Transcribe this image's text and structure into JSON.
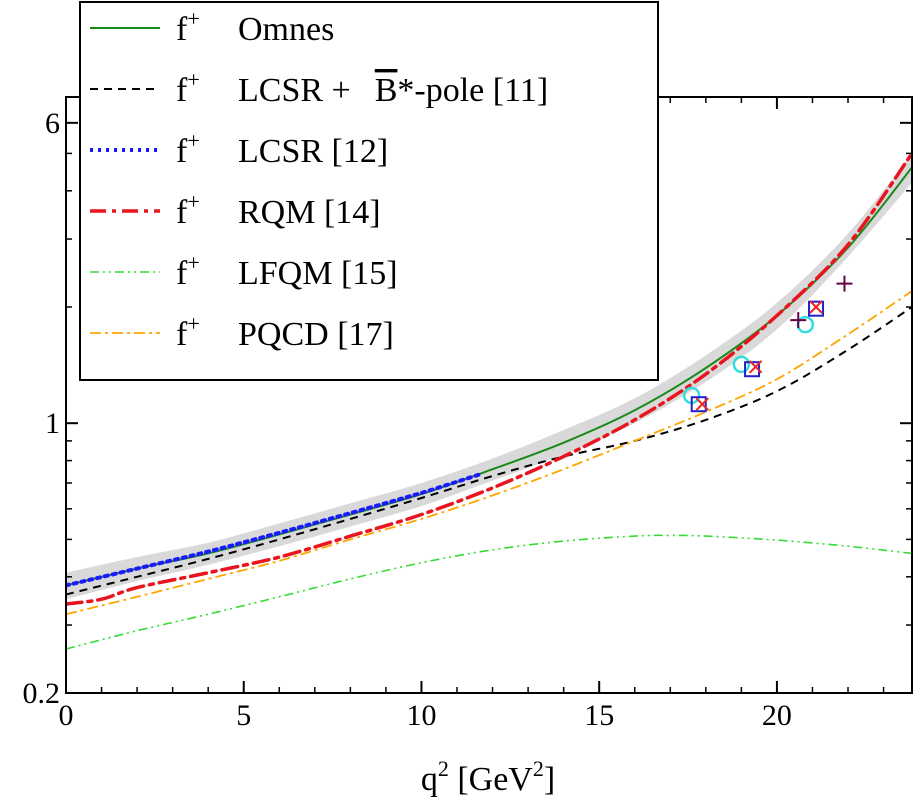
{
  "chart_data": {
    "type": "line",
    "title": "",
    "xlabel": "q",
    "xlabel_sup": "2",
    "xlabel_unit_open": " [GeV",
    "xlabel_unit_sup": "2",
    "xlabel_unit_close": "]",
    "ylabel": "",
    "xlim": [
      0,
      23.8
    ],
    "ylim": [
      0.2,
      7.0
    ],
    "yscale": "log",
    "grid": false,
    "legend_position": "top-left",
    "x_ticks": [
      {
        "value": 0,
        "label": "0"
      },
      {
        "value": 5,
        "label": "5"
      },
      {
        "value": 10,
        "label": "10"
      },
      {
        "value": 15,
        "label": "15"
      },
      {
        "value": 20,
        "label": "20"
      }
    ],
    "y_ticks": [
      {
        "value": 0.2,
        "label": "0.2"
      },
      {
        "value": 1,
        "label": "1"
      },
      {
        "value": 6,
        "label": "6"
      }
    ],
    "band": {
      "name": "Omnes uncertainty",
      "color": "#d9d9d9",
      "x": [
        0,
        2,
        4,
        6,
        8,
        10,
        12,
        14,
        16,
        18,
        20,
        22,
        23.8
      ],
      "lower": [
        0.35,
        0.39,
        0.43,
        0.48,
        0.54,
        0.61,
        0.71,
        0.83,
        1.0,
        1.28,
        1.75,
        2.7,
        4.2
      ],
      "upper": [
        0.41,
        0.45,
        0.49,
        0.55,
        0.62,
        0.7,
        0.81,
        0.96,
        1.16,
        1.5,
        2.05,
        3.1,
        5.0
      ]
    },
    "series": [
      {
        "name": "Omnes",
        "color": "#1a8a1a",
        "dash": "",
        "width": 2,
        "x": [
          0,
          2,
          4,
          6,
          8,
          10,
          12,
          14,
          16,
          18,
          20,
          22,
          23.8
        ],
        "values": [
          0.38,
          0.42,
          0.46,
          0.515,
          0.58,
          0.655,
          0.76,
          0.89,
          1.08,
          1.39,
          1.9,
          2.85,
          4.6
        ]
      },
      {
        "name": "LCSR + B*-pole [11]",
        "color": "#000000",
        "dash": "8,6",
        "width": 2,
        "x": [
          0,
          2,
          4,
          6,
          8,
          10,
          12,
          14,
          16,
          18,
          20,
          22,
          23.8
        ],
        "values": [
          0.36,
          0.4,
          0.445,
          0.5,
          0.565,
          0.64,
          0.73,
          0.82,
          0.9,
          1.02,
          1.21,
          1.55,
          2.0
        ]
      },
      {
        "name": "LCSR [12]",
        "color": "#1a1aff",
        "dash": "3,5",
        "width": 4,
        "x": [
          0,
          2,
          4,
          6,
          8,
          10,
          11.7
        ],
        "values": [
          0.38,
          0.42,
          0.465,
          0.52,
          0.585,
          0.66,
          0.74
        ]
      },
      {
        "name": "RQM [14]",
        "color": "#e8141e",
        "dash": "16,6,4,6",
        "width": 3.5,
        "x": [
          0,
          1,
          2,
          4,
          6,
          8,
          10,
          12,
          14,
          16,
          18,
          20,
          22,
          23.8
        ],
        "values": [
          0.34,
          0.35,
          0.375,
          0.41,
          0.45,
          0.51,
          0.58,
          0.68,
          0.82,
          1.02,
          1.34,
          1.9,
          2.9,
          5.0
        ]
      },
      {
        "name": "LFQM [15]",
        "color": "#33dd33",
        "dash": "9,4,2,4,2,4",
        "width": 1.6,
        "x": [
          0,
          2,
          4,
          6,
          8,
          10,
          12,
          14,
          16,
          17,
          18,
          20,
          22,
          23.8
        ],
        "values": [
          0.26,
          0.29,
          0.32,
          0.355,
          0.395,
          0.435,
          0.47,
          0.495,
          0.51,
          0.512,
          0.51,
          0.498,
          0.48,
          0.46
        ]
      },
      {
        "name": "PQCD [17]",
        "color": "#ffa500",
        "dash": "11,4,3,4",
        "width": 1.8,
        "x": [
          0,
          2,
          4,
          6,
          8,
          10,
          12,
          14,
          16,
          18,
          20,
          22,
          23.8
        ],
        "values": [
          0.32,
          0.355,
          0.395,
          0.44,
          0.5,
          0.565,
          0.65,
          0.76,
          0.9,
          1.07,
          1.3,
          1.7,
          2.2
        ]
      }
    ],
    "points": [
      {
        "name": "cyan circles",
        "marker": "circle",
        "color": "#33dddd",
        "x": [
          17.6,
          19.0,
          20.8
        ],
        "values": [
          1.18,
          1.42,
          1.8
        ]
      },
      {
        "name": "blue squares",
        "marker": "square",
        "color": "#2222cc",
        "x": [
          17.8,
          19.3,
          21.1
        ],
        "values": [
          1.12,
          1.38,
          1.98
        ]
      },
      {
        "name": "red crosses",
        "marker": "x",
        "color": "#ee2222",
        "x": [
          17.9,
          19.4,
          21.1
        ],
        "values": [
          1.12,
          1.4,
          2.0
        ]
      },
      {
        "name": "purple plus",
        "marker": "plus",
        "color": "#660044",
        "x": [
          20.6,
          21.9
        ],
        "values": [
          1.85,
          2.3
        ]
      }
    ],
    "legend": [
      {
        "prefix": "f",
        "sup": "+",
        "label": "Omnes",
        "series": 0
      },
      {
        "prefix": "f",
        "sup": "+",
        "label": "LCSR +",
        "bar_label": "B",
        "label_after": "*-pole [11]",
        "series": 1
      },
      {
        "prefix": "f",
        "sup": "+",
        "label": "LCSR [12]",
        "series": 2
      },
      {
        "prefix": "f",
        "sup": "+",
        "label": "RQM [14]",
        "series": 3
      },
      {
        "prefix": "f",
        "sup": "+",
        "label": "LFQM [15]",
        "series": 4
      },
      {
        "prefix": "f",
        "sup": "+",
        "label": "PQCD [17]",
        "series": 5
      }
    ]
  }
}
